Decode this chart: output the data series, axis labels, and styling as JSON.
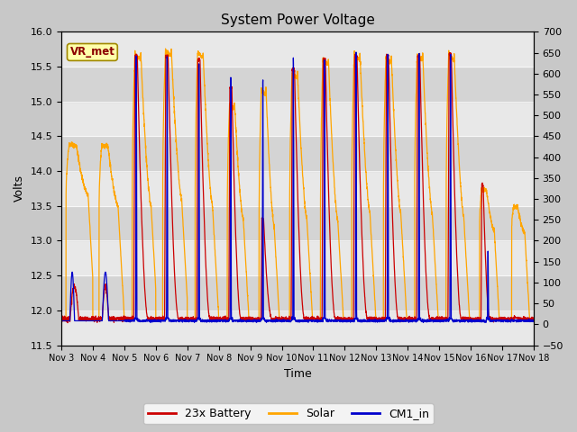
{
  "title": "System Power Voltage",
  "xlabel": "Time",
  "ylabel": "Volts",
  "ylim_left": [
    11.5,
    16.0
  ],
  "ylim_right": [
    -50,
    700
  ],
  "yticks_left": [
    11.5,
    12.0,
    12.5,
    13.0,
    13.5,
    14.0,
    14.5,
    15.0,
    15.5,
    16.0
  ],
  "yticks_right": [
    -50,
    0,
    50,
    100,
    150,
    200,
    250,
    300,
    350,
    400,
    450,
    500,
    550,
    600,
    650,
    700
  ],
  "fig_bg_color": "#c8c8c8",
  "plot_bg_color": "#e0e0e0",
  "band_light": "#e8e8e8",
  "band_dark": "#d4d4d4",
  "annotation_text": "VR_met",
  "annotation_color": "#8b0000",
  "annotation_bg": "#ffffaa",
  "annotation_edge": "#a08800",
  "line_battery_color": "#cc0000",
  "line_solar_color": "#ffa500",
  "line_cm1_color": "#0000cc",
  "legend_labels": [
    "23x Battery",
    "Solar",
    "CM1_in"
  ],
  "xticklabels": [
    "Nov 3",
    "Nov 4",
    "Nov 5",
    "Nov 6",
    "Nov 7",
    "Nov 8",
    "Nov 9",
    "Nov 10",
    "Nov 11",
    "Nov 12",
    "Nov 13",
    "Nov 14",
    "Nov 15",
    "Nov 16",
    "Nov 17",
    "Nov 18"
  ],
  "title_fontsize": 11,
  "axis_label_fontsize": 9,
  "tick_fontsize": 8,
  "xtick_fontsize": 7
}
